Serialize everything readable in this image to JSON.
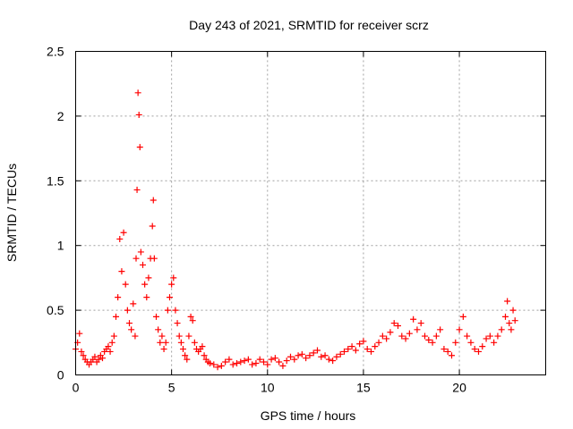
{
  "chart_data": {
    "type": "scatter",
    "title": "Day 243 of 2021, SRMTID for receiver scrz",
    "xlabel": "GPS time / hours",
    "ylabel": "SRMTID / TECUs",
    "xlim": [
      0,
      24.5
    ],
    "ylim": [
      0,
      2.5
    ],
    "xticks": [
      0,
      5,
      10,
      15,
      20
    ],
    "xtick_labels": [
      "0",
      "5",
      "10",
      "15",
      "20"
    ],
    "yticks": [
      0,
      0.5,
      1,
      1.5,
      2,
      2.5
    ],
    "ytick_labels": [
      "0",
      "0.5",
      "1",
      "1.5",
      "2",
      "2.5"
    ],
    "grid": true,
    "marker": "+",
    "colors": {
      "series": "#ff0000",
      "axis": "#000000",
      "grid": "#a0a0a0"
    },
    "series": [
      {
        "name": "SRMTID",
        "x": [
          0.0,
          0.1,
          0.2,
          0.3,
          0.4,
          0.5,
          0.6,
          0.7,
          0.8,
          0.9,
          1.0,
          1.1,
          1.2,
          1.3,
          1.4,
          1.5,
          1.6,
          1.7,
          1.8,
          1.9,
          2.0,
          2.1,
          2.2,
          2.3,
          2.4,
          2.5,
          2.6,
          2.7,
          2.8,
          2.9,
          3.0,
          3.1,
          3.15,
          3.2,
          3.25,
          3.3,
          3.35,
          3.4,
          3.5,
          3.6,
          3.7,
          3.8,
          3.9,
          4.0,
          4.05,
          4.1,
          4.2,
          4.3,
          4.4,
          4.5,
          4.6,
          4.7,
          4.8,
          4.9,
          5.0,
          5.1,
          5.2,
          5.3,
          5.4,
          5.5,
          5.6,
          5.7,
          5.8,
          5.9,
          6.0,
          6.1,
          6.2,
          6.3,
          6.4,
          6.5,
          6.6,
          6.7,
          6.8,
          6.9,
          7.0,
          7.2,
          7.4,
          7.6,
          7.8,
          8.0,
          8.2,
          8.4,
          8.6,
          8.8,
          9.0,
          9.2,
          9.4,
          9.6,
          9.8,
          10.0,
          10.2,
          10.4,
          10.6,
          10.8,
          11.0,
          11.2,
          11.4,
          11.6,
          11.8,
          12.0,
          12.2,
          12.4,
          12.6,
          12.8,
          13.0,
          13.2,
          13.4,
          13.6,
          13.8,
          14.0,
          14.2,
          14.4,
          14.6,
          14.8,
          15.0,
          15.2,
          15.4,
          15.6,
          15.8,
          16.0,
          16.2,
          16.4,
          16.6,
          16.8,
          17.0,
          17.2,
          17.4,
          17.6,
          17.8,
          18.0,
          18.2,
          18.4,
          18.6,
          18.8,
          19.0,
          19.2,
          19.4,
          19.6,
          19.8,
          20.0,
          20.2,
          20.4,
          20.6,
          20.8,
          21.0,
          21.2,
          21.4,
          21.6,
          21.8,
          22.0,
          22.2,
          22.4,
          22.5,
          22.6,
          22.7,
          22.8,
          22.9
        ],
        "y": [
          0.2,
          0.25,
          0.32,
          0.18,
          0.15,
          0.12,
          0.1,
          0.08,
          0.1,
          0.12,
          0.14,
          0.1,
          0.12,
          0.15,
          0.13,
          0.18,
          0.2,
          0.22,
          0.18,
          0.25,
          0.3,
          0.45,
          0.6,
          1.05,
          0.8,
          1.1,
          0.7,
          0.5,
          0.4,
          0.35,
          0.55,
          0.3,
          0.9,
          1.43,
          2.18,
          2.01,
          1.76,
          0.95,
          0.85,
          0.7,
          0.6,
          0.75,
          0.9,
          1.15,
          1.35,
          0.9,
          0.45,
          0.35,
          0.25,
          0.3,
          0.2,
          0.25,
          0.5,
          0.6,
          0.7,
          0.75,
          0.5,
          0.4,
          0.3,
          0.25,
          0.2,
          0.15,
          0.12,
          0.3,
          0.45,
          0.42,
          0.25,
          0.2,
          0.18,
          0.2,
          0.22,
          0.15,
          0.12,
          0.1,
          0.09,
          0.08,
          0.06,
          0.07,
          0.1,
          0.12,
          0.08,
          0.09,
          0.1,
          0.11,
          0.12,
          0.08,
          0.09,
          0.12,
          0.1,
          0.08,
          0.12,
          0.13,
          0.1,
          0.07,
          0.11,
          0.14,
          0.12,
          0.15,
          0.16,
          0.13,
          0.15,
          0.17,
          0.19,
          0.14,
          0.15,
          0.12,
          0.11,
          0.14,
          0.16,
          0.18,
          0.2,
          0.22,
          0.19,
          0.24,
          0.26,
          0.2,
          0.18,
          0.22,
          0.25,
          0.3,
          0.28,
          0.33,
          0.4,
          0.38,
          0.3,
          0.28,
          0.32,
          0.43,
          0.35,
          0.4,
          0.3,
          0.27,
          0.25,
          0.3,
          0.35,
          0.2,
          0.18,
          0.15,
          0.25,
          0.35,
          0.45,
          0.3,
          0.25,
          0.2,
          0.18,
          0.22,
          0.28,
          0.3,
          0.25,
          0.3,
          0.35,
          0.45,
          0.57,
          0.4,
          0.35,
          0.5,
          0.42
        ]
      }
    ]
  }
}
